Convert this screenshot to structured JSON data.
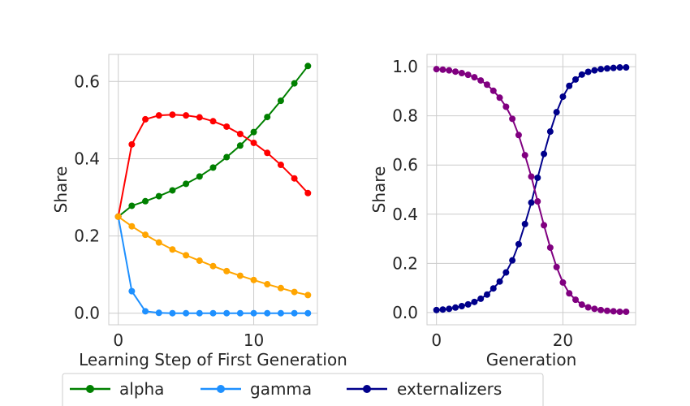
{
  "chart_data": [
    {
      "type": "line",
      "xlabel": "Learning Step of First Generation",
      "ylabel": "Share",
      "xlim": [
        -0.7,
        14.7
      ],
      "ylim": [
        -0.03,
        0.67
      ],
      "xticks": [
        0,
        10
      ],
      "xtick_labels": [
        "0",
        "10"
      ],
      "yticks": [
        0.0,
        0.2,
        0.4,
        0.6
      ],
      "ytick_labels": [
        "0.0",
        "0.2",
        "0.4",
        "0.6"
      ],
      "grid": true,
      "x": [
        0,
        1,
        2,
        3,
        4,
        5,
        6,
        7,
        8,
        9,
        10,
        11,
        12,
        13,
        14
      ],
      "series": [
        {
          "name": "alpha",
          "color": "#008000",
          "values": [
            0.25,
            0.278,
            0.29,
            0.303,
            0.318,
            0.335,
            0.354,
            0.377,
            0.404,
            0.434,
            0.469,
            0.508,
            0.55,
            0.595,
            0.64
          ]
        },
        {
          "name": "gamma",
          "color": "#1e90ff",
          "values": [
            0.25,
            0.057,
            0.005,
            0.001,
            0.0,
            0.0,
            0.0,
            0.0,
            0.0,
            0.0,
            0.0,
            0.0,
            0.0,
            0.0,
            0.0
          ]
        },
        {
          "name": "",
          "color": "#ff0000",
          "values": [
            0.25,
            0.437,
            0.502,
            0.512,
            0.514,
            0.512,
            0.507,
            0.497,
            0.483,
            0.464,
            0.441,
            0.415,
            0.384,
            0.349,
            0.311
          ]
        },
        {
          "name": "",
          "color": "#ffa500",
          "values": [
            0.25,
            0.225,
            0.203,
            0.183,
            0.165,
            0.15,
            0.136,
            0.122,
            0.109,
            0.097,
            0.086,
            0.075,
            0.065,
            0.055,
            0.047
          ]
        }
      ]
    },
    {
      "type": "line",
      "xlabel": "Generation",
      "ylabel": "Share",
      "xlim": [
        -1.5,
        31.5
      ],
      "ylim": [
        -0.05,
        1.05
      ],
      "xticks": [
        0,
        20
      ],
      "xtick_labels": [
        "0",
        "20"
      ],
      "yticks": [
        0.0,
        0.2,
        0.4,
        0.6,
        0.8,
        1.0
      ],
      "ytick_labels": [
        "0.0",
        "0.2",
        "0.4",
        "0.6",
        "0.8",
        "1.0"
      ],
      "grid": true,
      "x": [
        0,
        1,
        2,
        3,
        4,
        5,
        6,
        7,
        8,
        9,
        10,
        11,
        12,
        13,
        14,
        15,
        16,
        17,
        18,
        19,
        20,
        21,
        22,
        23,
        24,
        25,
        26,
        27,
        28,
        29,
        30
      ],
      "series": [
        {
          "name": "externalizers",
          "color": "#00008b",
          "values": [
            0.01,
            0.012,
            0.015,
            0.02,
            0.026,
            0.033,
            0.043,
            0.056,
            0.073,
            0.098,
            0.126,
            0.163,
            0.212,
            0.278,
            0.36,
            0.447,
            0.548,
            0.645,
            0.736,
            0.815,
            0.878,
            0.922,
            0.948,
            0.968,
            0.979,
            0.985,
            0.99,
            0.993,
            0.995,
            0.997,
            0.997
          ]
        },
        {
          "name": "",
          "color": "#800080",
          "values": [
            0.99,
            0.988,
            0.985,
            0.98,
            0.974,
            0.967,
            0.957,
            0.944,
            0.927,
            0.902,
            0.874,
            0.837,
            0.788,
            0.722,
            0.64,
            0.553,
            0.452,
            0.355,
            0.264,
            0.185,
            0.122,
            0.078,
            0.052,
            0.032,
            0.021,
            0.015,
            0.01,
            0.007,
            0.005,
            0.003,
            0.003
          ]
        }
      ]
    }
  ],
  "legend": {
    "entries": [
      {
        "label": "alpha",
        "color": "#008000"
      },
      {
        "label": "gamma",
        "color": "#1e90ff"
      },
      {
        "label": "externalizers",
        "color": "#00008b"
      }
    ]
  }
}
